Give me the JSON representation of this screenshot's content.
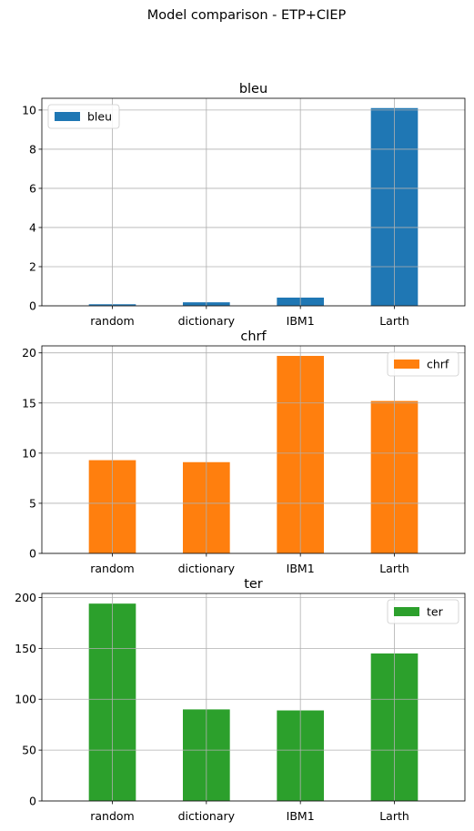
{
  "suptitle": "Model comparison - ETP+CIEP",
  "chart_data": [
    {
      "type": "bar",
      "title": "bleu",
      "categories": [
        "random",
        "dictionary",
        "IBM1",
        "Larth"
      ],
      "series": [
        {
          "name": "bleu",
          "values": [
            0.08,
            0.18,
            0.42,
            10.1
          ],
          "color": "#1f77b4"
        }
      ],
      "ylim": [
        0,
        10.6
      ],
      "yticks": [
        0,
        2,
        4,
        6,
        8,
        10
      ],
      "grid": true,
      "legend": "upper left",
      "xlabel": "",
      "ylabel": ""
    },
    {
      "type": "bar",
      "title": "chrf",
      "categories": [
        "random",
        "dictionary",
        "IBM1",
        "Larth"
      ],
      "series": [
        {
          "name": "chrf",
          "values": [
            9.3,
            9.1,
            19.7,
            15.2
          ],
          "color": "#ff7f0e"
        }
      ],
      "ylim": [
        0,
        20.7
      ],
      "yticks": [
        0,
        5,
        10,
        15,
        20
      ],
      "grid": true,
      "legend": "upper right",
      "xlabel": "",
      "ylabel": ""
    },
    {
      "type": "bar",
      "title": "ter",
      "categories": [
        "random",
        "dictionary",
        "IBM1",
        "Larth"
      ],
      "series": [
        {
          "name": "ter",
          "values": [
            194,
            90,
            89,
            145
          ],
          "color": "#2ca02c"
        }
      ],
      "ylim": [
        0,
        204
      ],
      "yticks": [
        0,
        50,
        100,
        150,
        200
      ],
      "grid": true,
      "legend": "upper right",
      "xlabel": "",
      "ylabel": ""
    }
  ]
}
